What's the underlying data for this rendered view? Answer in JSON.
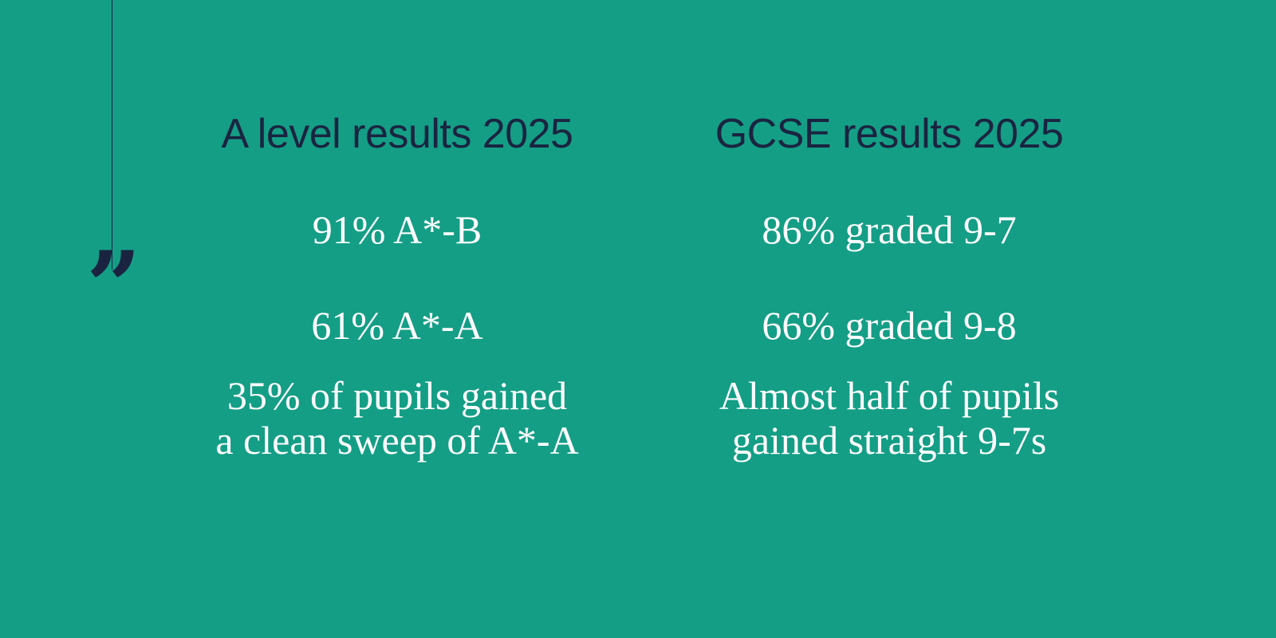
{
  "quote_icon": "closing-quote-icon",
  "colors": {
    "background": "#149e86",
    "heading": "#1a2440",
    "stat_text": "#ffffff",
    "rule": "#1a2440"
  },
  "a_level": {
    "heading": "A level results 2025",
    "stat_1": "91% A*-B",
    "stat_2": "61% A*-A",
    "stat_3_line_1": "35% of pupils gained",
    "stat_3_line_2": "a clean sweep of A*-A"
  },
  "gcse": {
    "heading": "GCSE results 2025",
    "stat_1": "86% graded 9-7",
    "stat_2": "66% graded 9-8",
    "stat_3_line_1": "Almost half of pupils",
    "stat_3_line_2": "gained straight 9-7s"
  }
}
